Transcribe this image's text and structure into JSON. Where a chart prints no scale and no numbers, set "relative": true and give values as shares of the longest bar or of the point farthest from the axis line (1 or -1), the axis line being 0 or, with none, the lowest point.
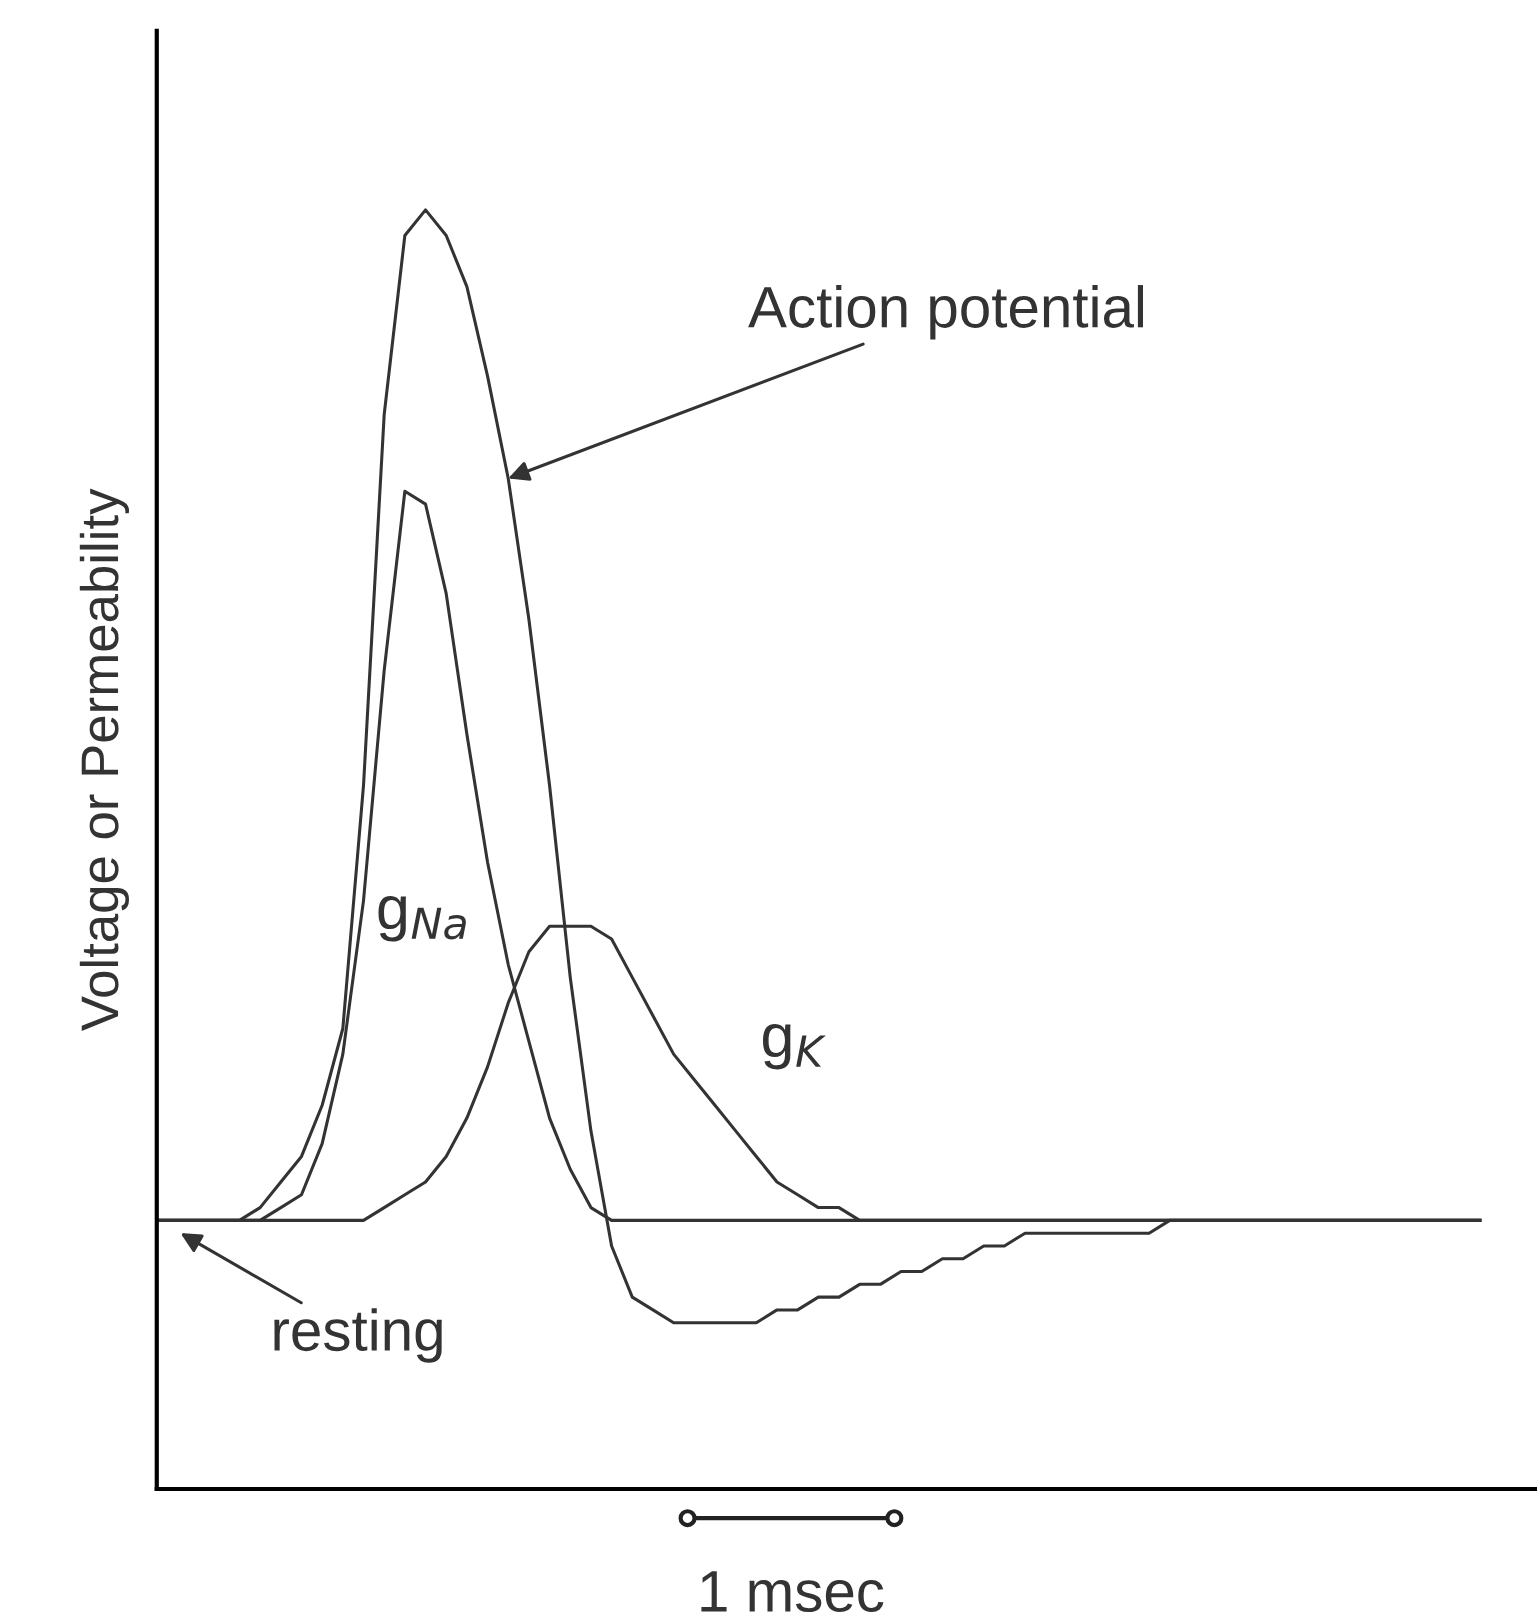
{
  "chart_data": {
    "type": "line",
    "relative": true,
    "ylabel": "Voltage or Permeability",
    "line_style": "solid",
    "categories": [
      null,
      null,
      null,
      null,
      null,
      null,
      null,
      null,
      null,
      null,
      null,
      null,
      null,
      null,
      null,
      null,
      null,
      null,
      null,
      null,
      null,
      null,
      null,
      null,
      null,
      null,
      null,
      null,
      null,
      null,
      null,
      null,
      null,
      null,
      null,
      null,
      null,
      null,
      null,
      null,
      null,
      null,
      null,
      null,
      null,
      null,
      null,
      null,
      null,
      null,
      null,
      null,
      null,
      null,
      null,
      null,
      null,
      null,
      null,
      null,
      null,
      null,
      null,
      null,
      null
    ],
    "series": [
      {
        "color": "#333333",
        "values": [
          0.21,
          0.21,
          0.21,
          0.21,
          0.21,
          0.22,
          0.24,
          0.26,
          0.3,
          0.36,
          0.55,
          0.84,
          0.98,
          1,
          0.98,
          0.94,
          0.87,
          0.79,
          0.68,
          0.55,
          0.4,
          0.28,
          0.19,
          0.15,
          0.14,
          0.13,
          0.13,
          0.13,
          0.13,
          0.13,
          0.14,
          0.14,
          0.15,
          0.15,
          0.16,
          0.16,
          0.17,
          0.17,
          0.18,
          0.18,
          0.19,
          0.19,
          0.2,
          0.2,
          0.2,
          0.2,
          0.2,
          0.2,
          0.2,
          0.21,
          0.21,
          0.21,
          0.21,
          0.21,
          0.21,
          0.21,
          0.21,
          0.21,
          0.21,
          0.21,
          0.21,
          0.21,
          0.21,
          0.21,
          0.21
        ]
      },
      {
        "name": "g$_{Na}$",
        "color": "#333333",
        "values": [
          0.21,
          0.21,
          0.21,
          0.21,
          0.21,
          0.21,
          0.22,
          0.23,
          0.27,
          0.34,
          0.46,
          0.64,
          0.78,
          0.77,
          0.7,
          0.59,
          0.49,
          0.41,
          0.35,
          0.29,
          0.25,
          0.22,
          0.21,
          0.21,
          0.21,
          0.21,
          0.21,
          0.21,
          0.21,
          0.21,
          0.21,
          0.21,
          0.21,
          0.21,
          0.21,
          0.21,
          0.21,
          0.21,
          0.21,
          0.21,
          0.21,
          0.21,
          0.21,
          0.21,
          0.21,
          0.21,
          0.21,
          0.21,
          0.21,
          0.21,
          0.21,
          0.21,
          0.21,
          0.21,
          0.21,
          0.21,
          0.21,
          0.21,
          0.21,
          0.21,
          0.21,
          0.21,
          0.21,
          0.21,
          0.21
        ]
      },
      {
        "name": "g$_{K}$",
        "color": "#333333",
        "values": [
          0.21,
          0.21,
          0.21,
          0.21,
          0.21,
          0.21,
          0.21,
          0.21,
          0.21,
          0.21,
          0.21,
          0.22,
          0.23,
          0.24,
          0.26,
          0.29,
          0.33,
          0.38,
          0.42,
          0.44,
          0.44,
          0.44,
          0.43,
          0.4,
          0.37,
          0.34,
          0.32,
          0.3,
          0.28,
          0.26,
          0.24,
          0.23,
          0.22,
          0.22,
          0.21,
          0.21,
          0.21,
          0.21,
          0.21,
          0.21,
          0.21,
          0.21,
          0.21,
          0.21,
          0.21,
          0.21,
          0.21,
          0.21,
          0.21,
          0.21,
          0.21,
          0.21,
          0.21,
          0.21,
          0.21,
          0.21,
          0.21,
          0.21,
          0.21,
          0.21,
          0.21,
          0.21,
          0.21,
          0.21,
          0.21
        ]
      }
    ],
    "annotations": [
      "Action potential",
      "resting",
      "1 msec"
    ]
  }
}
